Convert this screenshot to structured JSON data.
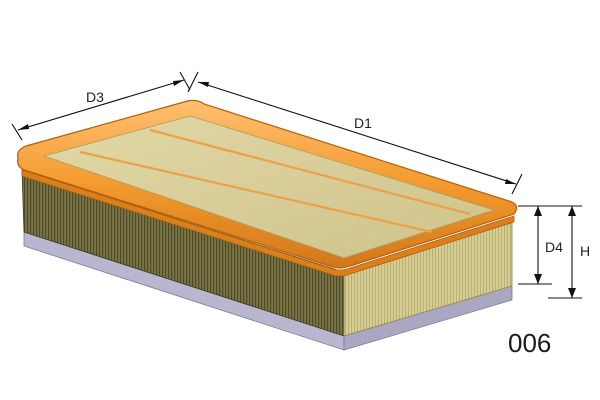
{
  "diagram": {
    "dimensions": {
      "d3": "D3",
      "d1": "D1",
      "d4": "D4",
      "h": "H"
    },
    "code": "006",
    "colors": {
      "frame": "#f39a2e",
      "frame_edge": "#c86a10",
      "media_top": "#d8cc96",
      "media_side": "#6f6a3e",
      "media_end": "#cfc68a",
      "base": "#b9b7cf",
      "line": "#111111"
    }
  }
}
